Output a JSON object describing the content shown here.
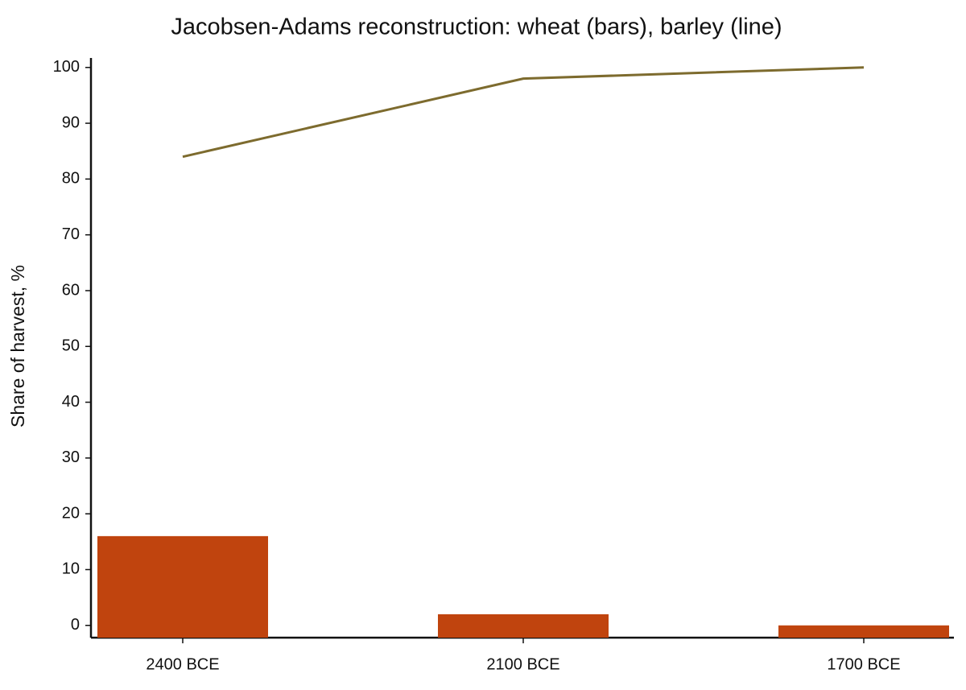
{
  "chart_data": {
    "type": "combo",
    "title": "Jacobsen-Adams reconstruction: wheat (bars), barley (line)",
    "y_label": "Share of harvest, %",
    "categories": [
      "2400 BCE",
      "2100 BCE",
      "1700 BCE"
    ],
    "series": [
      {
        "type": "bar",
        "color": "#c0440e",
        "values": [
          16,
          2,
          0
        ]
      },
      {
        "type": "line",
        "color": "#7d6b2e",
        "values": [
          84,
          98,
          100
        ]
      }
    ],
    "ylim": [
      -2.2,
      101.7
    ],
    "yticks": [
      0,
      10,
      20,
      30,
      40,
      50,
      60,
      70,
      80,
      90,
      100
    ]
  }
}
